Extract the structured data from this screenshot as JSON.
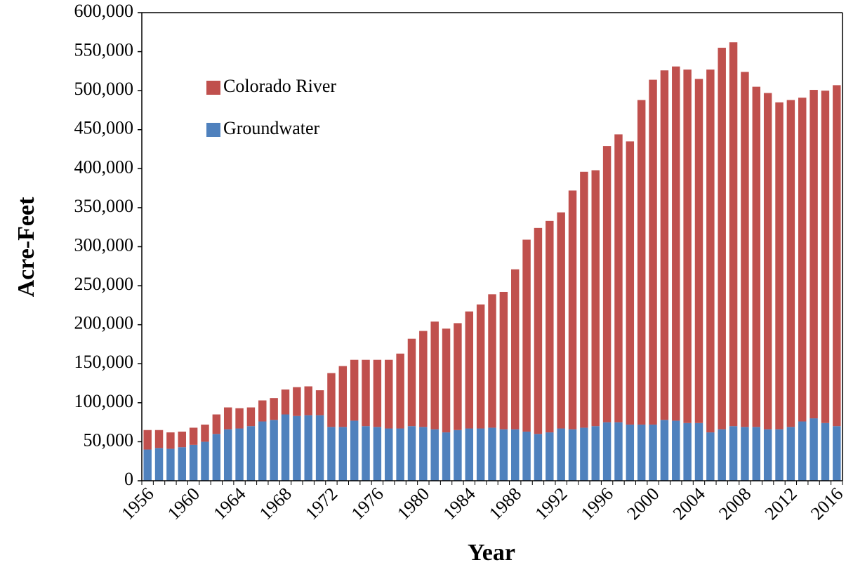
{
  "chart_data": {
    "type": "stacked_bar",
    "x_label": "Year",
    "y_label": "Acre-Feet",
    "categories": [
      "1956",
      null,
      null,
      null,
      "1960",
      null,
      null,
      null,
      "1964",
      null,
      null,
      null,
      "1968",
      null,
      null,
      null,
      "1972",
      null,
      null,
      null,
      "1976",
      null,
      null,
      null,
      "1980",
      null,
      null,
      null,
      "1984",
      null,
      null,
      null,
      "1988",
      null,
      null,
      null,
      "1992",
      null,
      null,
      null,
      "1996",
      null,
      null,
      null,
      "2000",
      null,
      null,
      null,
      "2004",
      null,
      null,
      null,
      "2008",
      null,
      null,
      null,
      "2012",
      null,
      null,
      null,
      "2016"
    ],
    "series": [
      {
        "name": "Groundwater",
        "color": "#4f81bd",
        "values": [
          40000,
          42000,
          41000,
          43000,
          46000,
          50000,
          60000,
          66000,
          67000,
          70000,
          76000,
          78000,
          85000,
          83000,
          84000,
          84000,
          69000,
          69000,
          77000,
          70000,
          69000,
          67000,
          67000,
          70000,
          69000,
          66000,
          62000,
          65000,
          67000,
          67000,
          68000,
          66000,
          66000,
          63000,
          60000,
          62000,
          67000,
          66000,
          68000,
          70000,
          75000,
          75000,
          72000,
          72000,
          72000,
          78000,
          77000,
          74000,
          74000,
          62000,
          66000,
          70000,
          69000,
          69000,
          66000,
          66000,
          69000,
          76000,
          80000,
          74000,
          70000
        ]
      },
      {
        "name": "Colorado River",
        "color": "#c0504d",
        "values": [
          25000,
          23000,
          21000,
          20000,
          22000,
          22000,
          25000,
          28000,
          26000,
          24000,
          27000,
          28000,
          32000,
          37000,
          37000,
          32000,
          69000,
          78000,
          78000,
          85000,
          86000,
          88000,
          96000,
          112000,
          123000,
          138000,
          133000,
          137000,
          150000,
          159000,
          171000,
          176000,
          205000,
          246000,
          264000,
          271000,
          277000,
          306000,
          328000,
          328000,
          354000,
          369000,
          363000,
          416000,
          442000,
          448000,
          454000,
          453000,
          441000,
          465000,
          489000,
          492000,
          455000,
          436000,
          431000,
          419000,
          419000,
          415000,
          421000,
          426000,
          437000
        ]
      }
    ],
    "ylim": [
      0,
      600000
    ],
    "yticks": [
      0,
      {
        "value": 50000,
        "label": "50,000"
      },
      {
        "value": 100000,
        "label": "100,000"
      },
      {
        "value": 150000,
        "label": "150,000"
      },
      {
        "value": 200000,
        "label": "200,000"
      },
      {
        "value": 250000,
        "label": "250,000"
      },
      {
        "value": 300000,
        "label": "300,000"
      },
      {
        "value": 350000,
        "label": "350,000"
      },
      {
        "value": 400000,
        "label": "400,000"
      },
      {
        "value": 450000,
        "label": "450,000"
      },
      {
        "value": 500000,
        "label": "500,000"
      },
      {
        "value": 550000,
        "label": "550,000"
      },
      {
        "value": 600000,
        "label": "600,000"
      }
    ],
    "legend": "upper-left"
  }
}
